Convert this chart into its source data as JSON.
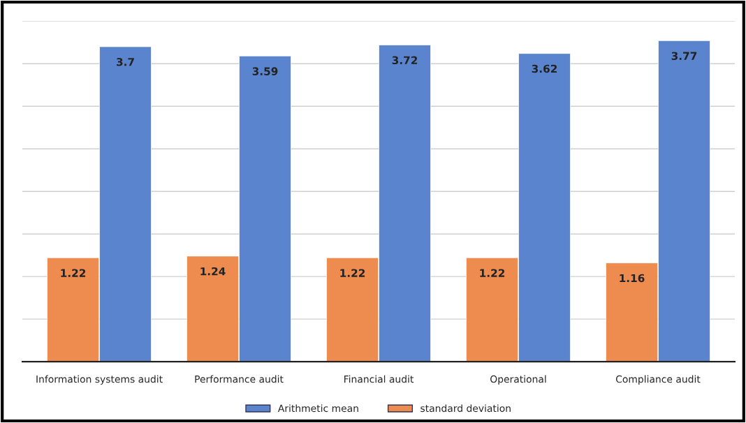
{
  "chart_data": {
    "type": "bar",
    "categories": [
      "Information systems audit",
      "Performance audit",
      "Financial audit",
      "Operational",
      "Compliance audit"
    ],
    "series": [
      {
        "name": "standard deviation",
        "color": "#ee8c4f",
        "values": [
          1.22,
          1.24,
          1.22,
          1.22,
          1.16
        ]
      },
      {
        "name": "Arithmetic mean",
        "color": "#5b84cf",
        "values": [
          3.7,
          3.59,
          3.72,
          3.62,
          3.77
        ]
      }
    ],
    "ylim": [
      0,
      4
    ],
    "yticks": [
      {
        "value": 0,
        "label": null
      },
      {
        "value": 0.5,
        "label": null
      },
      {
        "value": 1,
        "label": null
      },
      {
        "value": 1.5,
        "label": null
      },
      {
        "value": 2,
        "label": null
      },
      {
        "value": 2.5,
        "label": null
      },
      {
        "value": 3,
        "label": null
      },
      {
        "value": 3.5,
        "label": null
      },
      {
        "value": 4,
        "label": null
      }
    ],
    "tick_labels": "x",
    "grid": "y",
    "data_labels": true,
    "legend": "bottom"
  }
}
